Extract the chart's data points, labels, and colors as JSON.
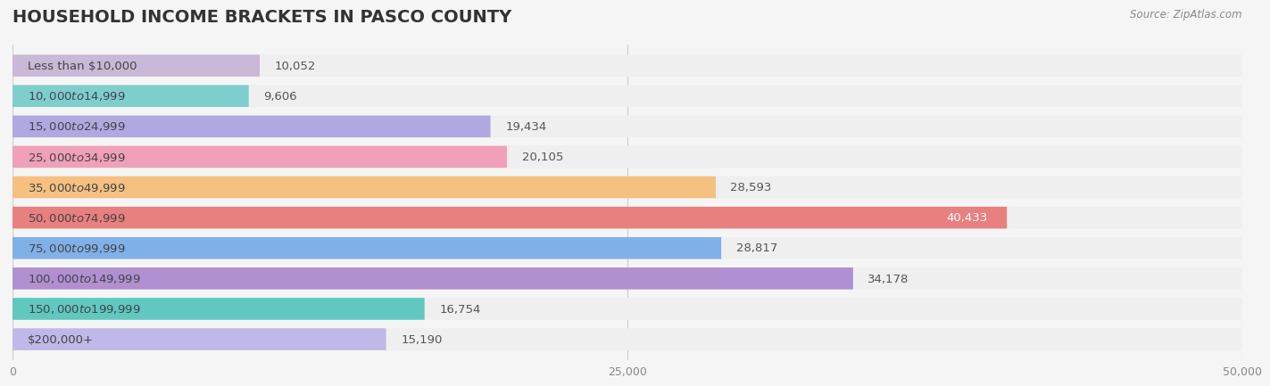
{
  "title": "HOUSEHOLD INCOME BRACKETS IN PASCO COUNTY",
  "source": "Source: ZipAtlas.com",
  "categories": [
    "Less than $10,000",
    "$10,000 to $14,999",
    "$15,000 to $24,999",
    "$25,000 to $34,999",
    "$35,000 to $49,999",
    "$50,000 to $74,999",
    "$75,000 to $99,999",
    "$100,000 to $149,999",
    "$150,000 to $199,999",
    "$200,000+"
  ],
  "values": [
    10052,
    9606,
    19434,
    20105,
    28593,
    40433,
    28817,
    34178,
    16754,
    15190
  ],
  "bar_colors": [
    "#c9b8d8",
    "#7ecece",
    "#b0a8e0",
    "#f0a0b8",
    "#f5c080",
    "#e88080",
    "#80b0e8",
    "#b090d0",
    "#60c8c0",
    "#c0b8e8"
  ],
  "label_colors": [
    "#888888",
    "#888888",
    "#888888",
    "#888888",
    "#888888",
    "#ffffff",
    "#888888",
    "#ffffff",
    "#888888",
    "#888888"
  ],
  "xlim": [
    0,
    50000
  ],
  "xticks": [
    0,
    25000,
    50000
  ],
  "xticklabels": [
    "0",
    "25,000",
    "50,000"
  ],
  "bg_color": "#f5f5f5",
  "bar_bg_color": "#efefef",
  "title_color": "#333333",
  "title_fontsize": 14,
  "bar_height": 0.72,
  "value_fontsize": 9.5,
  "label_fontsize": 9.5
}
